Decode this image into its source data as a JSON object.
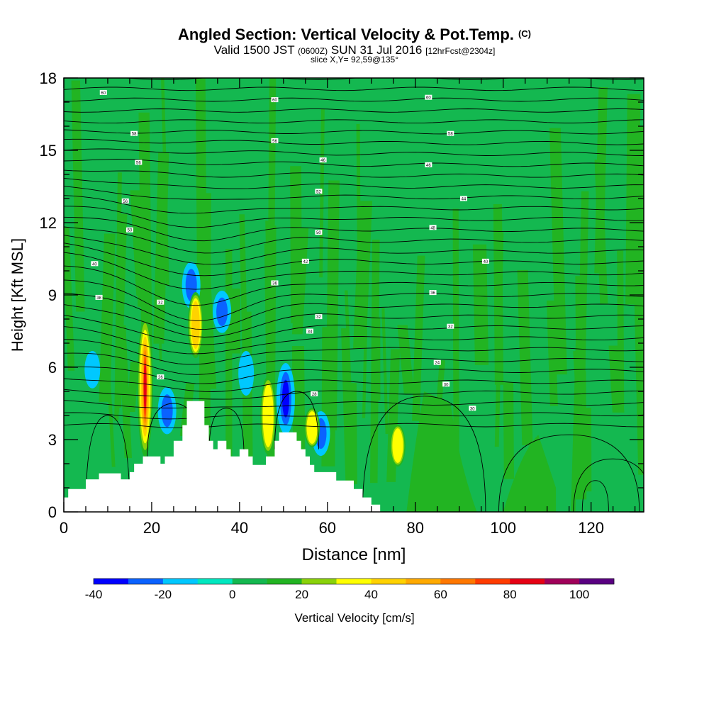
{
  "header": {
    "title": "Angled Section: Vertical Velocity & Pot.Temp.",
    "title_mark": "(C)",
    "valid_prefix": "Valid 1500 JST",
    "valid_z": "(0600Z)",
    "valid_date": "SUN 31 Jul 2016",
    "valid_fcst": "[12hrFcst@2304z]",
    "slice": "slice X,Y= 92,59@135°"
  },
  "chart_data": {
    "type": "heatmap",
    "xlabel": "Distance [nm]",
    "ylabel": "Height [Kft MSL]",
    "xlim": [
      0,
      132
    ],
    "ylim": [
      0,
      18
    ],
    "x_ticks": [
      0,
      20,
      40,
      60,
      80,
      100,
      120
    ],
    "y_ticks": [
      0,
      3,
      6,
      9,
      12,
      15,
      18
    ],
    "colorbar": {
      "label": "Vertical Velocity [cm/s]",
      "range": [
        -40,
        110
      ],
      "step": 10,
      "tick_values": [
        -40,
        -20,
        0,
        20,
        40,
        60,
        80,
        100
      ],
      "colors": [
        "#0000ff",
        "#0a62ff",
        "#00c8ff",
        "#00e8c0",
        "#14b850",
        "#22b422",
        "#8ad20a",
        "#ffff00",
        "#ffd200",
        "#ffaa00",
        "#ff7800",
        "#ff3c00",
        "#e60014",
        "#a0005a",
        "#5a0082"
      ]
    },
    "background_value_range": [
      0,
      10
    ],
    "updrafts": [
      {
        "x": 18.5,
        "y_bottom": 2.4,
        "y_top": 8.0,
        "peak_cm_s": 80
      },
      {
        "x": 30.0,
        "y_bottom": 6.5,
        "y_top": 9.0,
        "peak_cm_s": 40
      },
      {
        "x": 46.5,
        "y_bottom": 2.5,
        "y_top": 5.5,
        "peak_cm_s": 30
      },
      {
        "x": 56.5,
        "y_bottom": 2.8,
        "y_top": 4.2,
        "peak_cm_s": 30
      },
      {
        "x": 76.0,
        "y_bottom": 2.0,
        "y_top": 3.5,
        "peak_cm_s": 30
      }
    ],
    "downdrafts": [
      {
        "x": 29.0,
        "y_bottom": 8.6,
        "y_top": 10.2,
        "min_cm_s": -30
      },
      {
        "x": 36.0,
        "y_bottom": 7.6,
        "y_top": 9.0,
        "min_cm_s": -30
      },
      {
        "x": 23.5,
        "y_bottom": 3.4,
        "y_top": 5.0,
        "min_cm_s": -30
      },
      {
        "x": 50.5,
        "y_bottom": 3.4,
        "y_top": 6.0,
        "min_cm_s": -40
      },
      {
        "x": 58.5,
        "y_bottom": 2.5,
        "y_top": 4.0,
        "min_cm_s": -30
      },
      {
        "x": 41.5,
        "y_bottom": 5.0,
        "y_top": 6.5,
        "min_cm_s": -20
      },
      {
        "x": 6.5,
        "y_bottom": 5.3,
        "y_top": 6.5,
        "min_cm_s": -20
      }
    ],
    "isentrope_labels": [
      {
        "x": 9,
        "y": 17.4,
        "text": "60"
      },
      {
        "x": 48,
        "y": 17.1,
        "text": "60"
      },
      {
        "x": 83,
        "y": 17.2,
        "text": "60"
      },
      {
        "x": 16,
        "y": 15.7,
        "text": "58"
      },
      {
        "x": 48,
        "y": 15.4,
        "text": "56"
      },
      {
        "x": 88,
        "y": 15.7,
        "text": "58"
      },
      {
        "x": 17,
        "y": 14.5,
        "text": "56"
      },
      {
        "x": 59,
        "y": 14.6,
        "text": "46"
      },
      {
        "x": 83,
        "y": 14.4,
        "text": "46"
      },
      {
        "x": 14,
        "y": 12.9,
        "text": "56"
      },
      {
        "x": 58,
        "y": 13.3,
        "text": "52"
      },
      {
        "x": 91,
        "y": 13.0,
        "text": "44"
      },
      {
        "x": 15,
        "y": 11.7,
        "text": "50"
      },
      {
        "x": 58,
        "y": 11.6,
        "text": "50"
      },
      {
        "x": 84,
        "y": 11.8,
        "text": "48"
      },
      {
        "x": 7,
        "y": 10.3,
        "text": "40"
      },
      {
        "x": 55,
        "y": 10.4,
        "text": "42"
      },
      {
        "x": 96,
        "y": 10.4,
        "text": "40"
      },
      {
        "x": 8,
        "y": 8.9,
        "text": "38"
      },
      {
        "x": 22,
        "y": 8.7,
        "text": "32"
      },
      {
        "x": 48,
        "y": 9.5,
        "text": "36"
      },
      {
        "x": 84,
        "y": 9.1,
        "text": "36"
      },
      {
        "x": 58,
        "y": 8.1,
        "text": "32"
      },
      {
        "x": 56,
        "y": 7.5,
        "text": "34"
      },
      {
        "x": 88,
        "y": 7.7,
        "text": "32"
      },
      {
        "x": 22,
        "y": 5.6,
        "text": "26"
      },
      {
        "x": 85,
        "y": 6.2,
        "text": "24"
      },
      {
        "x": 87,
        "y": 5.3,
        "text": "30"
      },
      {
        "x": 57,
        "y": 4.9,
        "text": "28"
      },
      {
        "x": 93,
        "y": 4.3,
        "text": "30"
      }
    ],
    "terrain_heights_kft": [
      [
        0,
        0.6
      ],
      [
        1,
        0.95
      ],
      [
        5,
        1.35
      ],
      [
        8,
        1.6
      ],
      [
        13,
        1.35
      ],
      [
        15,
        1.65
      ],
      [
        16,
        2.0
      ],
      [
        18,
        2.3
      ],
      [
        21,
        2.3
      ],
      [
        22,
        2.0
      ],
      [
        23,
        2.3
      ],
      [
        25,
        2.95
      ],
      [
        27,
        3.6
      ],
      [
        28,
        4.6
      ],
      [
        31,
        4.6
      ],
      [
        32,
        3.6
      ],
      [
        33,
        2.95
      ],
      [
        34,
        2.6
      ],
      [
        35,
        2.95
      ],
      [
        37,
        2.6
      ],
      [
        38,
        2.3
      ],
      [
        40,
        2.6
      ],
      [
        42,
        2.3
      ],
      [
        43,
        1.95
      ],
      [
        46,
        2.3
      ],
      [
        48,
        2.95
      ],
      [
        49,
        3.3
      ],
      [
        52,
        3.3
      ],
      [
        53,
        2.95
      ],
      [
        54,
        2.6
      ],
      [
        55,
        2.3
      ],
      [
        56,
        1.95
      ],
      [
        57,
        1.65
      ],
      [
        62,
        1.3
      ],
      [
        66,
        0.95
      ],
      [
        68,
        0.6
      ],
      [
        70,
        0.3
      ],
      [
        72,
        0.0
      ]
    ]
  }
}
